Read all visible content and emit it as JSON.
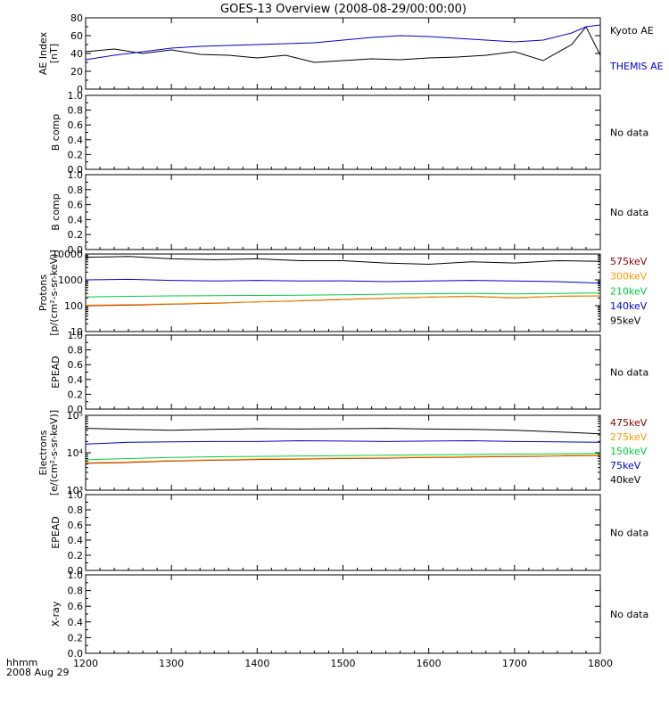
{
  "title": "GOES-13 Overview (2008-08-29/00:00:00)",
  "x_axis": {
    "label_line1": "hhmm",
    "label_line2": "2008 Aug 29",
    "ticks": [
      "1200",
      "1300",
      "1400",
      "1500",
      "1600",
      "1700",
      "1800"
    ]
  },
  "no_data_text": "No data",
  "chart_data": [
    {
      "type": "line",
      "name": "ae",
      "ylabel_line1": "AE Index",
      "ylabel_line2": "[nT]",
      "ylim": [
        0,
        80
      ],
      "yticks": [
        "0",
        "20",
        "40",
        "60",
        "80"
      ],
      "x": [
        "12:00",
        "12:20",
        "12:40",
        "13:00",
        "13:20",
        "13:40",
        "14:00",
        "14:20",
        "14:40",
        "15:00",
        "15:20",
        "15:40",
        "16:00",
        "16:20",
        "16:40",
        "17:00",
        "17:20",
        "17:40",
        "17:50",
        "18:00"
      ],
      "series": [
        {
          "name": "Kyoto AE",
          "color": "#000000",
          "values": [
            42,
            45,
            40,
            44,
            39,
            38,
            35,
            38,
            30,
            32,
            34,
            33,
            35,
            36,
            38,
            42,
            32,
            50,
            70,
            38
          ]
        },
        {
          "name": "THEMIS AE",
          "color": "#0000cc",
          "values": [
            33,
            38,
            42,
            46,
            48,
            49,
            50,
            51,
            52,
            55,
            58,
            60,
            59,
            57,
            55,
            53,
            55,
            63,
            70,
            72
          ]
        }
      ]
    },
    {
      "type": "line",
      "name": "bcomp1",
      "ylabel_line1": "B comp",
      "ylim": [
        0,
        1
      ],
      "yticks": [
        "0.0",
        "0.2",
        "0.4",
        "0.6",
        "0.8",
        "1.0"
      ],
      "series": []
    },
    {
      "type": "line",
      "name": "bcomp2",
      "ylabel_line1": "B comp",
      "ylim": [
        0,
        1
      ],
      "yticks": [
        "0.0",
        "0.2",
        "0.4",
        "0.6",
        "0.8",
        "1.0"
      ],
      "series": []
    },
    {
      "type": "line",
      "name": "protons",
      "ylabel_line1": "Protons",
      "ylabel_line2": "[p/(cm²-s-sr-keV)]",
      "yscale": "log",
      "ylim": [
        10,
        10000
      ],
      "yticks": [
        "10",
        "100",
        "1000",
        "10000"
      ],
      "x": [
        "12:00",
        "12:30",
        "13:00",
        "13:30",
        "14:00",
        "14:30",
        "15:00",
        "15:30",
        "16:00",
        "16:30",
        "17:00",
        "17:30",
        "18:00"
      ],
      "series": [
        {
          "name": "575keV",
          "color": "#8b0000",
          "values": [
            100,
            105,
            115,
            125,
            140,
            155,
            175,
            195,
            215,
            230,
            200,
            230,
            240
          ]
        },
        {
          "name": "300keV",
          "color": "#ff9900",
          "values": [
            105,
            110,
            118,
            128,
            142,
            158,
            178,
            198,
            218,
            235,
            205,
            232,
            245
          ]
        },
        {
          "name": "210keV",
          "color": "#00cc44",
          "values": [
            220,
            230,
            240,
            245,
            250,
            255,
            265,
            280,
            290,
            300,
            285,
            300,
            310
          ]
        },
        {
          "name": "140keV",
          "color": "#0000cc",
          "values": [
            1000,
            1050,
            950,
            900,
            950,
            900,
            920,
            850,
            900,
            950,
            900,
            850,
            750
          ]
        },
        {
          "name": "95keV",
          "color": "#000000",
          "values": [
            7500,
            8000,
            6500,
            6000,
            6500,
            5500,
            5500,
            4500,
            4000,
            5000,
            4500,
            5500,
            5200
          ]
        }
      ]
    },
    {
      "type": "line",
      "name": "epead1",
      "ylabel_line1": "EPEAD",
      "ylim": [
        0,
        1
      ],
      "yticks": [
        "0.0",
        "0.2",
        "0.4",
        "0.6",
        "0.8",
        "1.0"
      ],
      "series": []
    },
    {
      "type": "line",
      "name": "electrons",
      "ylabel_line1": "Electrons",
      "ylabel_line2": "[e/(cm²-s-sr-keV)]",
      "yscale": "log",
      "ylim": [
        1000,
        100000
      ],
      "yticks": [
        "10³",
        "10⁴",
        "10⁵"
      ],
      "x": [
        "12:00",
        "12:30",
        "13:00",
        "13:30",
        "14:00",
        "14:30",
        "15:00",
        "15:30",
        "16:00",
        "16:30",
        "17:00",
        "17:30",
        "18:00"
      ],
      "series": [
        {
          "name": "475keV",
          "color": "#8b0000",
          "values": [
            5200,
            5500,
            6000,
            6300,
            6600,
            6800,
            7000,
            7200,
            7500,
            7700,
            7900,
            8200,
            8500
          ]
        },
        {
          "name": "275keV",
          "color": "#ff9900",
          "values": [
            5400,
            5700,
            6200,
            6500,
            6800,
            7000,
            7200,
            7400,
            7700,
            7900,
            8100,
            8400,
            8700
          ]
        },
        {
          "name": "150keV",
          "color": "#00cc44",
          "values": [
            6500,
            7000,
            7500,
            7800,
            8000,
            8200,
            8400,
            8600,
            8800,
            9000,
            9200,
            9400,
            9600
          ]
        },
        {
          "name": "75keV",
          "color": "#0000cc",
          "values": [
            17000,
            19000,
            19500,
            20000,
            20000,
            21000,
            20500,
            20000,
            20500,
            21000,
            20000,
            19500,
            19000
          ]
        },
        {
          "name": "40keV",
          "color": "#000000",
          "values": [
            45000,
            42000,
            40000,
            42000,
            44000,
            43000,
            44000,
            45000,
            43000,
            42000,
            40000,
            36000,
            32000
          ]
        }
      ]
    },
    {
      "type": "line",
      "name": "epead2",
      "ylabel_line1": "EPEAD",
      "ylim": [
        0,
        1
      ],
      "yticks": [
        "0.0",
        "0.2",
        "0.4",
        "0.6",
        "0.8",
        "1.0"
      ],
      "series": []
    },
    {
      "type": "line",
      "name": "xray",
      "ylabel_line1": "X-ray",
      "ylim": [
        0,
        1
      ],
      "yticks": [
        "0.0",
        "0.2",
        "0.4",
        "0.6",
        "0.8",
        "1.0"
      ],
      "series": []
    }
  ]
}
